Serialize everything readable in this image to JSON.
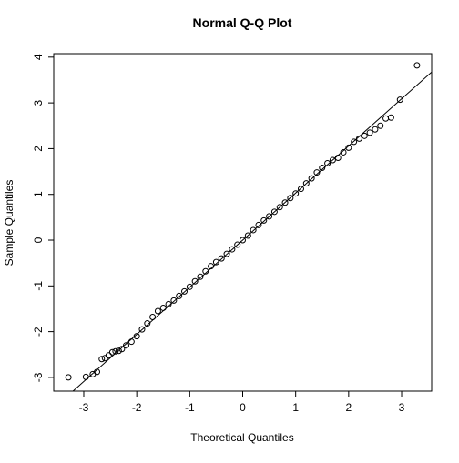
{
  "chart_data": {
    "type": "scatter",
    "title": "Normal Q-Q Plot",
    "x_label": "Theoretical Quantiles",
    "y_label": "Sample Quantiles",
    "xlim": [
      -3.567,
      3.567
    ],
    "ylim": [
      -3.3,
      4.076
    ],
    "xticks": [
      -3,
      -2,
      -1,
      0,
      1,
      2,
      3
    ],
    "yticks": [
      -3,
      -2,
      -1,
      0,
      1,
      2,
      3,
      4
    ],
    "color": "#000000",
    "qqline": {
      "intercept": 0,
      "slope": 1.03
    },
    "x": [
      -3.29,
      -2.96,
      -2.83,
      -2.75,
      -2.66,
      -2.6,
      -2.53,
      -2.46,
      -2.4,
      -2.34,
      -2.28,
      -2.2,
      -2.1,
      -2.0,
      -1.9,
      -1.8,
      -1.7,
      -1.6,
      -1.5,
      -1.4,
      -1.3,
      -1.2,
      -1.1,
      -1.0,
      -0.9,
      -0.8,
      -0.7,
      -0.6,
      -0.5,
      -0.4,
      -0.3,
      -0.2,
      -0.1,
      0,
      0.1,
      0.2,
      0.3,
      0.4,
      0.5,
      0.6,
      0.7,
      0.8,
      0.9,
      1.0,
      1.1,
      1.2,
      1.3,
      1.4,
      1.5,
      1.6,
      1.7,
      1.8,
      1.9,
      2.0,
      2.1,
      2.2,
      2.3,
      2.4,
      2.5,
      2.6,
      2.7,
      2.8,
      2.97,
      3.29
    ],
    "values": [
      -3.0,
      -2.99,
      -2.93,
      -2.88,
      -2.6,
      -2.58,
      -2.52,
      -2.45,
      -2.43,
      -2.42,
      -2.38,
      -2.3,
      -2.22,
      -2.1,
      -1.95,
      -1.82,
      -1.68,
      -1.55,
      -1.48,
      -1.4,
      -1.32,
      -1.22,
      -1.12,
      -1.02,
      -0.9,
      -0.8,
      -0.68,
      -0.57,
      -0.48,
      -0.4,
      -0.3,
      -0.2,
      -0.1,
      0,
      0.1,
      0.22,
      0.33,
      0.43,
      0.52,
      0.62,
      0.72,
      0.82,
      0.92,
      1.02,
      1.12,
      1.24,
      1.35,
      1.48,
      1.58,
      1.68,
      1.75,
      1.8,
      1.92,
      2.02,
      2.15,
      2.22,
      2.28,
      2.35,
      2.42,
      2.5,
      2.66,
      2.68,
      3.07,
      3.82
    ]
  }
}
